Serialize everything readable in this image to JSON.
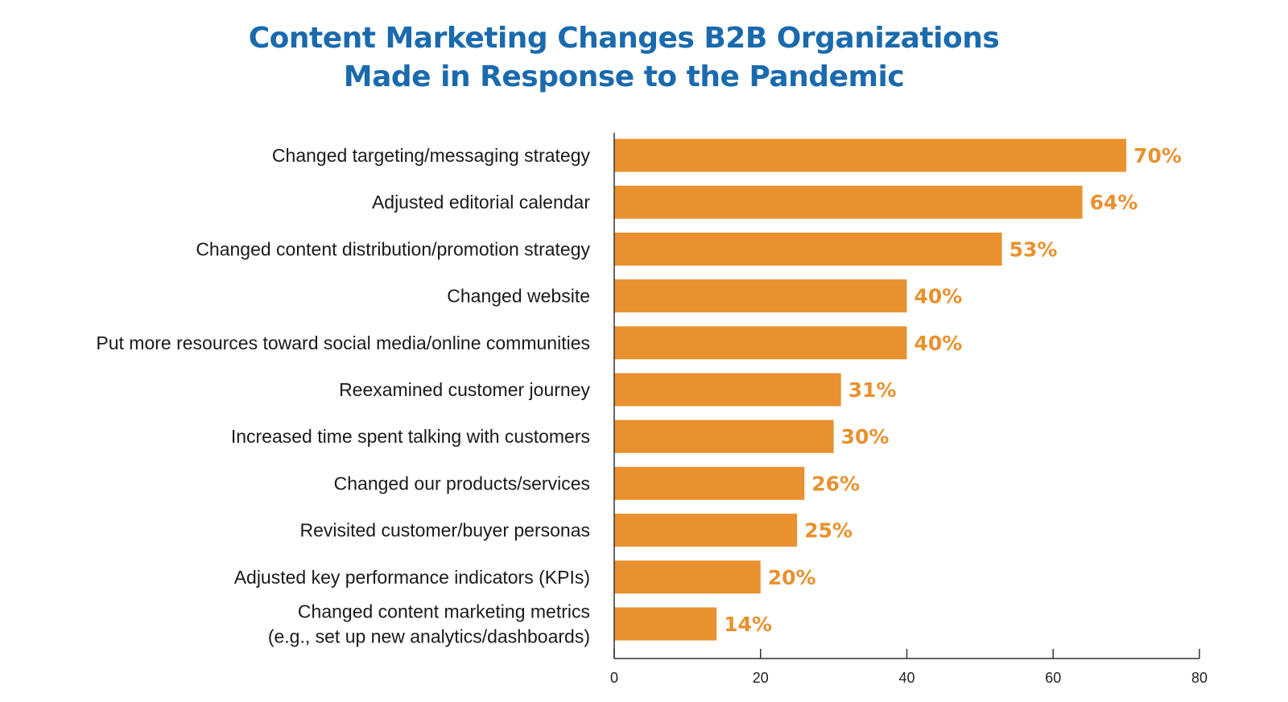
{
  "chart_data": {
    "type": "bar",
    "orientation": "horizontal",
    "title": [
      "Content Marketing Changes B2B Organizations",
      "Made in Response to the Pandemic"
    ],
    "categories": [
      [
        "Changed targeting/messaging strategy"
      ],
      [
        "Adjusted editorial calendar"
      ],
      [
        "Changed content distribution/promotion strategy"
      ],
      [
        "Changed website"
      ],
      [
        "Put more resources toward social media/online communities"
      ],
      [
        "Reexamined customer journey"
      ],
      [
        "Increased time spent talking with customers"
      ],
      [
        "Changed our products/services"
      ],
      [
        "Revisited customer/buyer personas"
      ],
      [
        "Adjusted key performance indicators (KPIs)"
      ],
      [
        "Changed content marketing metrics",
        "(e.g., set up new analytics/dashboards)"
      ]
    ],
    "values": [
      70,
      64,
      53,
      40,
      40,
      31,
      30,
      26,
      25,
      20,
      14
    ],
    "value_labels": [
      "70%",
      "64%",
      "53%",
      "40%",
      "40%",
      "31%",
      "30%",
      "26%",
      "25%",
      "20%",
      "14%"
    ],
    "xlim": [
      0,
      80
    ],
    "xticks": [
      0,
      20,
      40,
      60,
      80
    ],
    "xtick_labels": [
      "0",
      "20",
      "40",
      "60",
      "80"
    ],
    "grid": false,
    "bar_color": "#e8912e",
    "title_color": "#1a6aad"
  }
}
